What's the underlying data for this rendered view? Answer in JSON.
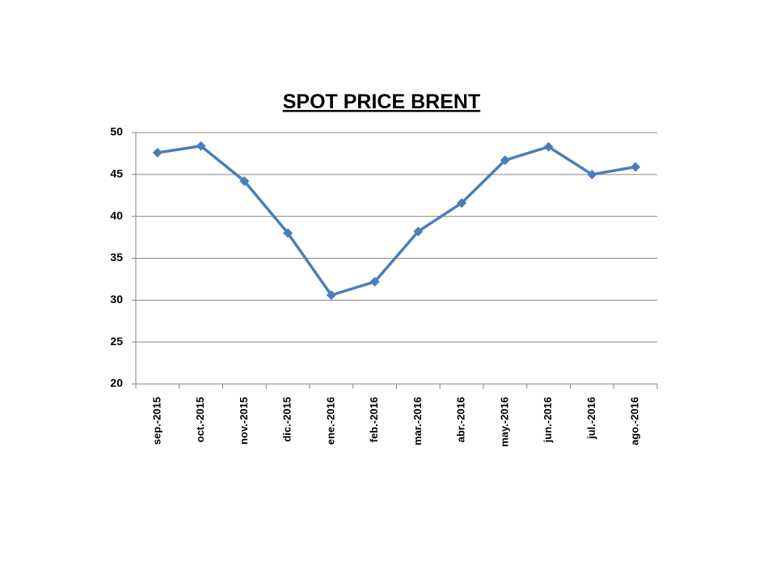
{
  "chart_data": {
    "type": "line",
    "title": "SPOT PRICE BRENT",
    "categories": [
      "sep.-2015",
      "oct.-2015",
      "nov.-2015",
      "dic.-2015",
      "ene.-2016",
      "feb.-2016",
      "mar.-2016",
      "abr.-2016",
      "may.-2016",
      "jun.-2016",
      "jul.-2016",
      "ago.-2016"
    ],
    "values": [
      47.6,
      48.4,
      44.2,
      38.0,
      30.6,
      32.2,
      38.2,
      41.6,
      46.7,
      48.3,
      45.0,
      45.9
    ],
    "color": "#4a7ebb",
    "ylim": [
      20,
      50
    ],
    "yticks": [
      20,
      25,
      30,
      35,
      40,
      45,
      50
    ],
    "grid": true
  }
}
